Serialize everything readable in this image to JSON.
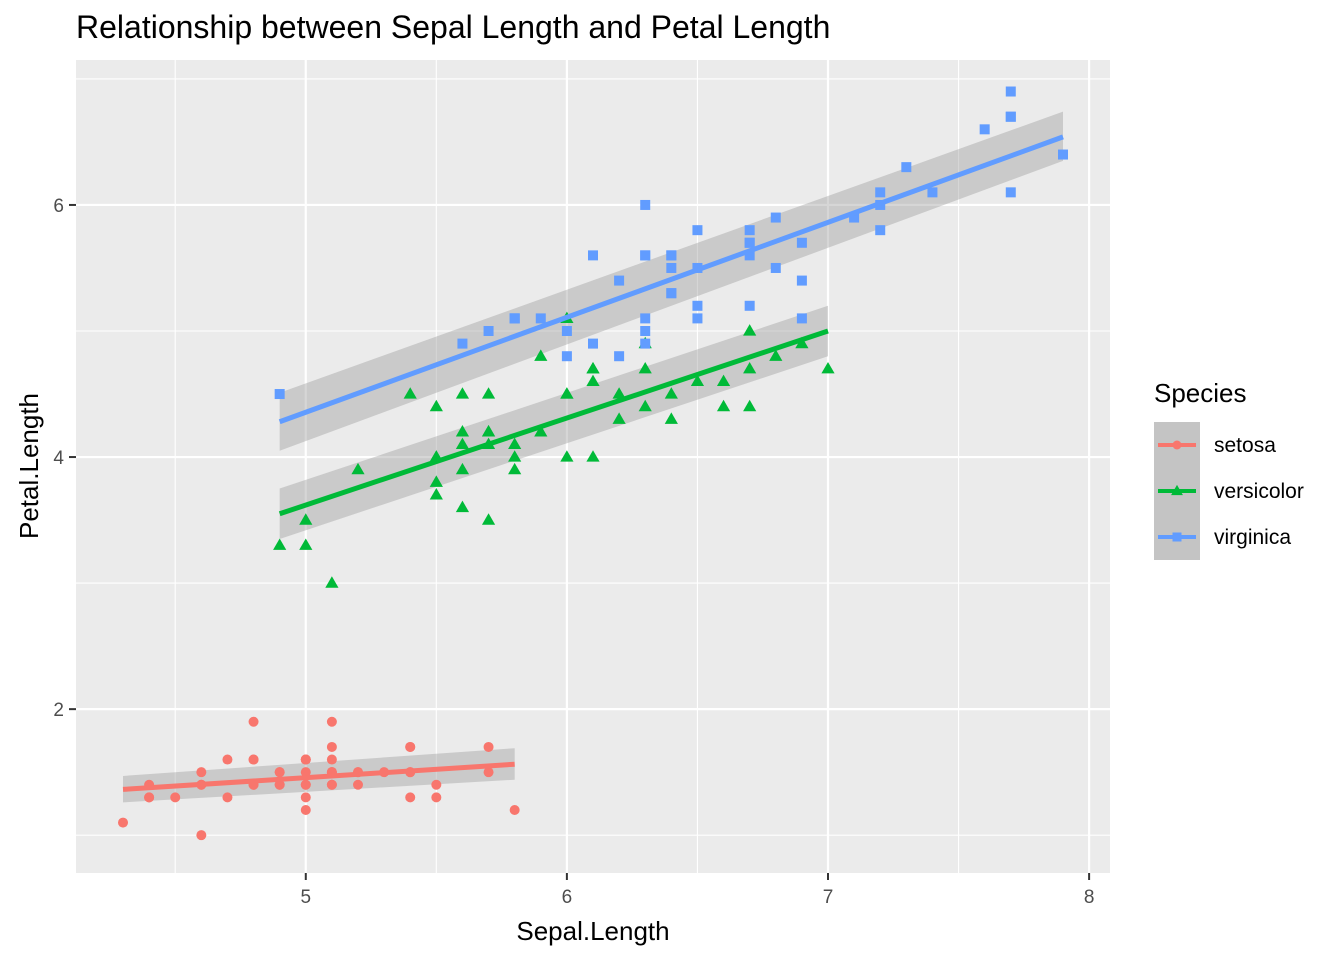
{
  "chart_data": {
    "type": "scatter",
    "title": "Relationship between Sepal Length and Petal Length",
    "xlabel": "Sepal.Length",
    "ylabel": "Petal.Length",
    "xlim": [
      4.12,
      8.08
    ],
    "ylim": [
      0.7,
      7.15
    ],
    "xticks": [
      5,
      6,
      7,
      8
    ],
    "yticks": [
      2,
      4,
      6
    ],
    "grid": true,
    "legend": {
      "title": "Species",
      "placement": "right"
    },
    "series": [
      {
        "name": "setosa",
        "color": "#F8766D",
        "marker": "circle",
        "x": [
          5.1,
          4.9,
          4.7,
          4.6,
          5.0,
          5.4,
          4.6,
          5.0,
          4.4,
          4.9,
          5.4,
          4.8,
          4.8,
          4.3,
          5.8,
          5.7,
          5.4,
          5.1,
          5.7,
          5.1,
          5.4,
          5.1,
          4.6,
          5.1,
          4.8,
          5.0,
          5.0,
          5.2,
          5.2,
          4.7,
          4.8,
          5.4,
          5.2,
          5.5,
          4.9,
          5.0,
          5.5,
          4.9,
          4.4,
          5.1,
          5.0,
          4.5,
          4.4,
          5.0,
          5.1,
          4.8,
          5.1,
          4.6,
          5.3,
          5.0
        ],
        "y": [
          1.4,
          1.4,
          1.3,
          1.5,
          1.4,
          1.7,
          1.4,
          1.5,
          1.4,
          1.5,
          1.5,
          1.6,
          1.4,
          1.1,
          1.2,
          1.5,
          1.3,
          1.4,
          1.7,
          1.5,
          1.7,
          1.5,
          1.0,
          1.7,
          1.9,
          1.6,
          1.6,
          1.5,
          1.4,
          1.6,
          1.6,
          1.5,
          1.5,
          1.4,
          1.5,
          1.2,
          1.3,
          1.4,
          1.3,
          1.5,
          1.3,
          1.3,
          1.3,
          1.6,
          1.9,
          1.4,
          1.6,
          1.4,
          1.5,
          1.4
        ],
        "fit": {
          "x": [
            4.3,
            5.8
          ],
          "y": [
            1.363,
            1.563
          ],
          "ci": [
            [
              1.26,
              1.47
            ],
            [
              1.44,
              1.69
            ]
          ]
        }
      },
      {
        "name": "versicolor",
        "color": "#00BA38",
        "marker": "triangle",
        "x": [
          7.0,
          6.4,
          6.9,
          5.5,
          6.5,
          5.7,
          6.3,
          4.9,
          6.6,
          5.2,
          5.0,
          5.9,
          6.0,
          6.1,
          5.6,
          6.7,
          5.6,
          5.8,
          6.2,
          5.6,
          5.9,
          6.1,
          6.3,
          6.1,
          6.4,
          6.6,
          6.8,
          6.7,
          6.0,
          5.7,
          5.5,
          5.5,
          5.8,
          6.0,
          5.4,
          6.0,
          6.7,
          6.3,
          5.6,
          5.5,
          5.5,
          6.1,
          5.8,
          5.0,
          5.6,
          5.7,
          5.7,
          6.2,
          5.1,
          5.7
        ],
        "y": [
          4.7,
          4.5,
          4.9,
          4.0,
          4.6,
          4.5,
          4.7,
          3.3,
          4.6,
          3.9,
          3.5,
          4.2,
          4.0,
          4.7,
          3.6,
          4.4,
          4.5,
          4.1,
          4.5,
          3.9,
          4.8,
          4.0,
          4.9,
          4.7,
          4.3,
          4.4,
          4.8,
          5.0,
          4.5,
          3.5,
          3.8,
          3.7,
          3.9,
          5.1,
          4.5,
          4.5,
          4.7,
          4.4,
          4.1,
          4.0,
          4.4,
          4.6,
          4.0,
          3.3,
          4.2,
          4.2,
          4.2,
          4.3,
          3.0,
          4.1
        ],
        "fit": {
          "x": [
            4.9,
            7.0
          ],
          "y": [
            3.55,
            5.0
          ],
          "ci": [
            [
              3.35,
              3.75
            ],
            [
              4.8,
              5.2
            ]
          ]
        }
      },
      {
        "name": "virginica",
        "color": "#619CFF",
        "marker": "square",
        "x": [
          6.3,
          5.8,
          7.1,
          6.3,
          6.5,
          7.6,
          4.9,
          7.3,
          6.7,
          7.2,
          6.5,
          6.4,
          6.8,
          5.7,
          5.8,
          6.4,
          6.5,
          7.7,
          7.7,
          6.0,
          6.9,
          5.6,
          7.7,
          6.3,
          6.7,
          7.2,
          6.2,
          6.1,
          6.4,
          7.2,
          7.4,
          7.9,
          6.4,
          6.3,
          6.1,
          7.7,
          6.3,
          6.4,
          6.0,
          6.9,
          6.7,
          6.9,
          5.8,
          6.8,
          6.7,
          6.7,
          6.3,
          6.5,
          6.2,
          5.9
        ],
        "y": [
          6.0,
          5.1,
          5.9,
          5.6,
          5.8,
          6.6,
          4.5,
          6.3,
          5.8,
          6.1,
          5.1,
          5.3,
          5.5,
          5.0,
          5.1,
          5.3,
          5.5,
          6.7,
          6.9,
          5.0,
          5.7,
          4.9,
          6.7,
          4.9,
          5.7,
          6.0,
          4.8,
          4.9,
          5.6,
          5.8,
          6.1,
          6.4,
          5.6,
          5.1,
          5.6,
          6.1,
          5.6,
          5.5,
          4.8,
          5.4,
          5.6,
          5.1,
          5.1,
          5.9,
          5.7,
          5.2,
          5.0,
          5.2,
          5.4,
          5.1
        ],
        "fit": {
          "x": [
            4.9,
            7.9
          ],
          "y": [
            4.28,
            6.54
          ],
          "ci": [
            [
              4.05,
              4.51
            ],
            [
              6.35,
              6.74
            ]
          ]
        }
      }
    ]
  }
}
